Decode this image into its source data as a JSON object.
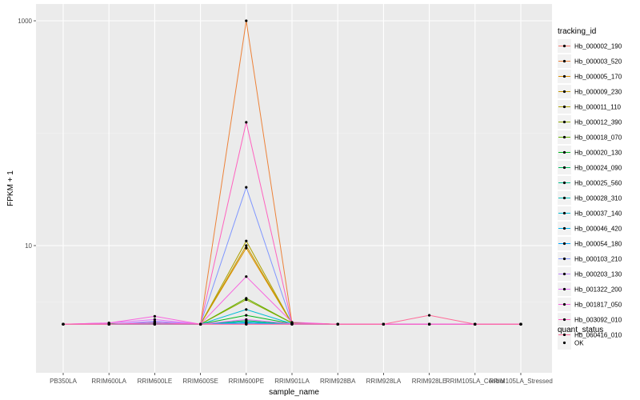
{
  "chart_data": {
    "type": "line",
    "xlabel": "sample_name",
    "ylabel": "FPKM + 1",
    "y_scale": "log10",
    "ylim": [
      1.7,
      1000
    ],
    "yticks": [
      10,
      1000
    ],
    "ytick_labels": [
      "10",
      "1000"
    ],
    "categories": [
      "PB350LA",
      "RRIM600LA",
      "RRIM600LE",
      "RRIM600SE",
      "RRIM600PE",
      "RRIM901LA",
      "RRIM928BA",
      "RRIM928LA",
      "RRIM928LE",
      "RRIM105LA_Control",
      "RRIM105LA_Stressed"
    ],
    "legend_title": "tracking_id",
    "series": [
      {
        "name": "Hb_000002_190",
        "color": "#F8766D",
        "values": [
          2,
          2,
          2,
          2,
          2,
          2,
          2,
          2,
          2,
          2,
          2
        ]
      },
      {
        "name": "Hb_000003_520",
        "color": "#EC8239",
        "values": [
          2,
          2,
          2.05,
          2,
          1000,
          2.05,
          2,
          2,
          2,
          2,
          2
        ]
      },
      {
        "name": "Hb_000005_170",
        "color": "#DB8E00",
        "values": [
          2,
          2,
          2,
          2,
          9.5,
          2.02,
          2,
          2,
          2,
          2,
          2
        ]
      },
      {
        "name": "Hb_000009_230",
        "color": "#C79800",
        "values": [
          2,
          2,
          2,
          2,
          10,
          2.02,
          2,
          2,
          2,
          2,
          2
        ]
      },
      {
        "name": "Hb_000011_110",
        "color": "#AEA200",
        "values": [
          2,
          2,
          2,
          2,
          11,
          2.02,
          2,
          2,
          2,
          2,
          2
        ]
      },
      {
        "name": "Hb_000012_390",
        "color": "#8FAA00",
        "values": [
          2,
          2,
          2,
          2,
          3.3,
          2.05,
          2,
          2,
          2,
          2,
          2
        ]
      },
      {
        "name": "Hb_000018_070",
        "color": "#64B200",
        "values": [
          2,
          2,
          2,
          2,
          3.4,
          2.05,
          2,
          2,
          2,
          2,
          2
        ]
      },
      {
        "name": "Hb_000020_130",
        "color": "#00B81B",
        "values": [
          2,
          2.02,
          2.05,
          2,
          2.4,
          2.02,
          2,
          2,
          2,
          2,
          2
        ]
      },
      {
        "name": "Hb_000024_090",
        "color": "#00BD5C",
        "values": [
          2,
          2,
          2,
          2,
          2.15,
          2,
          2,
          2,
          2,
          2,
          2
        ]
      },
      {
        "name": "Hb_000025_560",
        "color": "#00C08E",
        "values": [
          2,
          2,
          2,
          2,
          2.05,
          2,
          2,
          2,
          2,
          2,
          2
        ]
      },
      {
        "name": "Hb_000028_310",
        "color": "#00C1B7",
        "values": [
          2,
          2,
          2,
          2,
          2.1,
          2,
          2,
          2,
          2,
          2,
          2
        ]
      },
      {
        "name": "Hb_000037_140",
        "color": "#00BDD4",
        "values": [
          2,
          2,
          2.05,
          2,
          2.7,
          2.02,
          2,
          2,
          2,
          2,
          2
        ]
      },
      {
        "name": "Hb_000046_420",
        "color": "#00B5EE",
        "values": [
          2,
          2,
          2,
          2,
          2.05,
          2,
          2,
          2,
          2,
          2,
          2
        ]
      },
      {
        "name": "Hb_000054_180",
        "color": "#00A7FF",
        "values": [
          2,
          2,
          2,
          2,
          2.05,
          2,
          2,
          2,
          2,
          2,
          2
        ]
      },
      {
        "name": "Hb_000103_210",
        "color": "#7F96FF",
        "values": [
          2,
          2,
          2.1,
          2,
          33,
          2.02,
          2,
          2,
          2,
          2,
          2
        ]
      },
      {
        "name": "Hb_000203_130",
        "color": "#BC81FF",
        "values": [
          2,
          2,
          2.12,
          2,
          2,
          2,
          2,
          2,
          2,
          2,
          2
        ]
      },
      {
        "name": "Hb_001322_200",
        "color": "#E26EF7",
        "values": [
          2,
          2.05,
          2.2,
          2,
          2.2,
          2.02,
          2,
          2,
          2,
          2,
          2
        ]
      },
      {
        "name": "Hb_001817_050",
        "color": "#F863DF",
        "values": [
          2,
          2.05,
          2.35,
          2,
          5.3,
          2.08,
          2,
          2,
          2,
          2,
          2
        ]
      },
      {
        "name": "Hb_003092_010",
        "color": "#FF62BF",
        "values": [
          2,
          2,
          2.05,
          2,
          125,
          2.02,
          2,
          2,
          2,
          2,
          2
        ]
      },
      {
        "name": "Hb_060416_010",
        "color": "#FF6A98",
        "values": [
          2,
          2,
          2,
          2,
          2,
          2,
          2,
          2,
          2.4,
          2,
          2
        ]
      }
    ],
    "legend2_title": "quant_status",
    "legend2_items": [
      "OK"
    ],
    "grid": true,
    "legend_position": "right"
  }
}
